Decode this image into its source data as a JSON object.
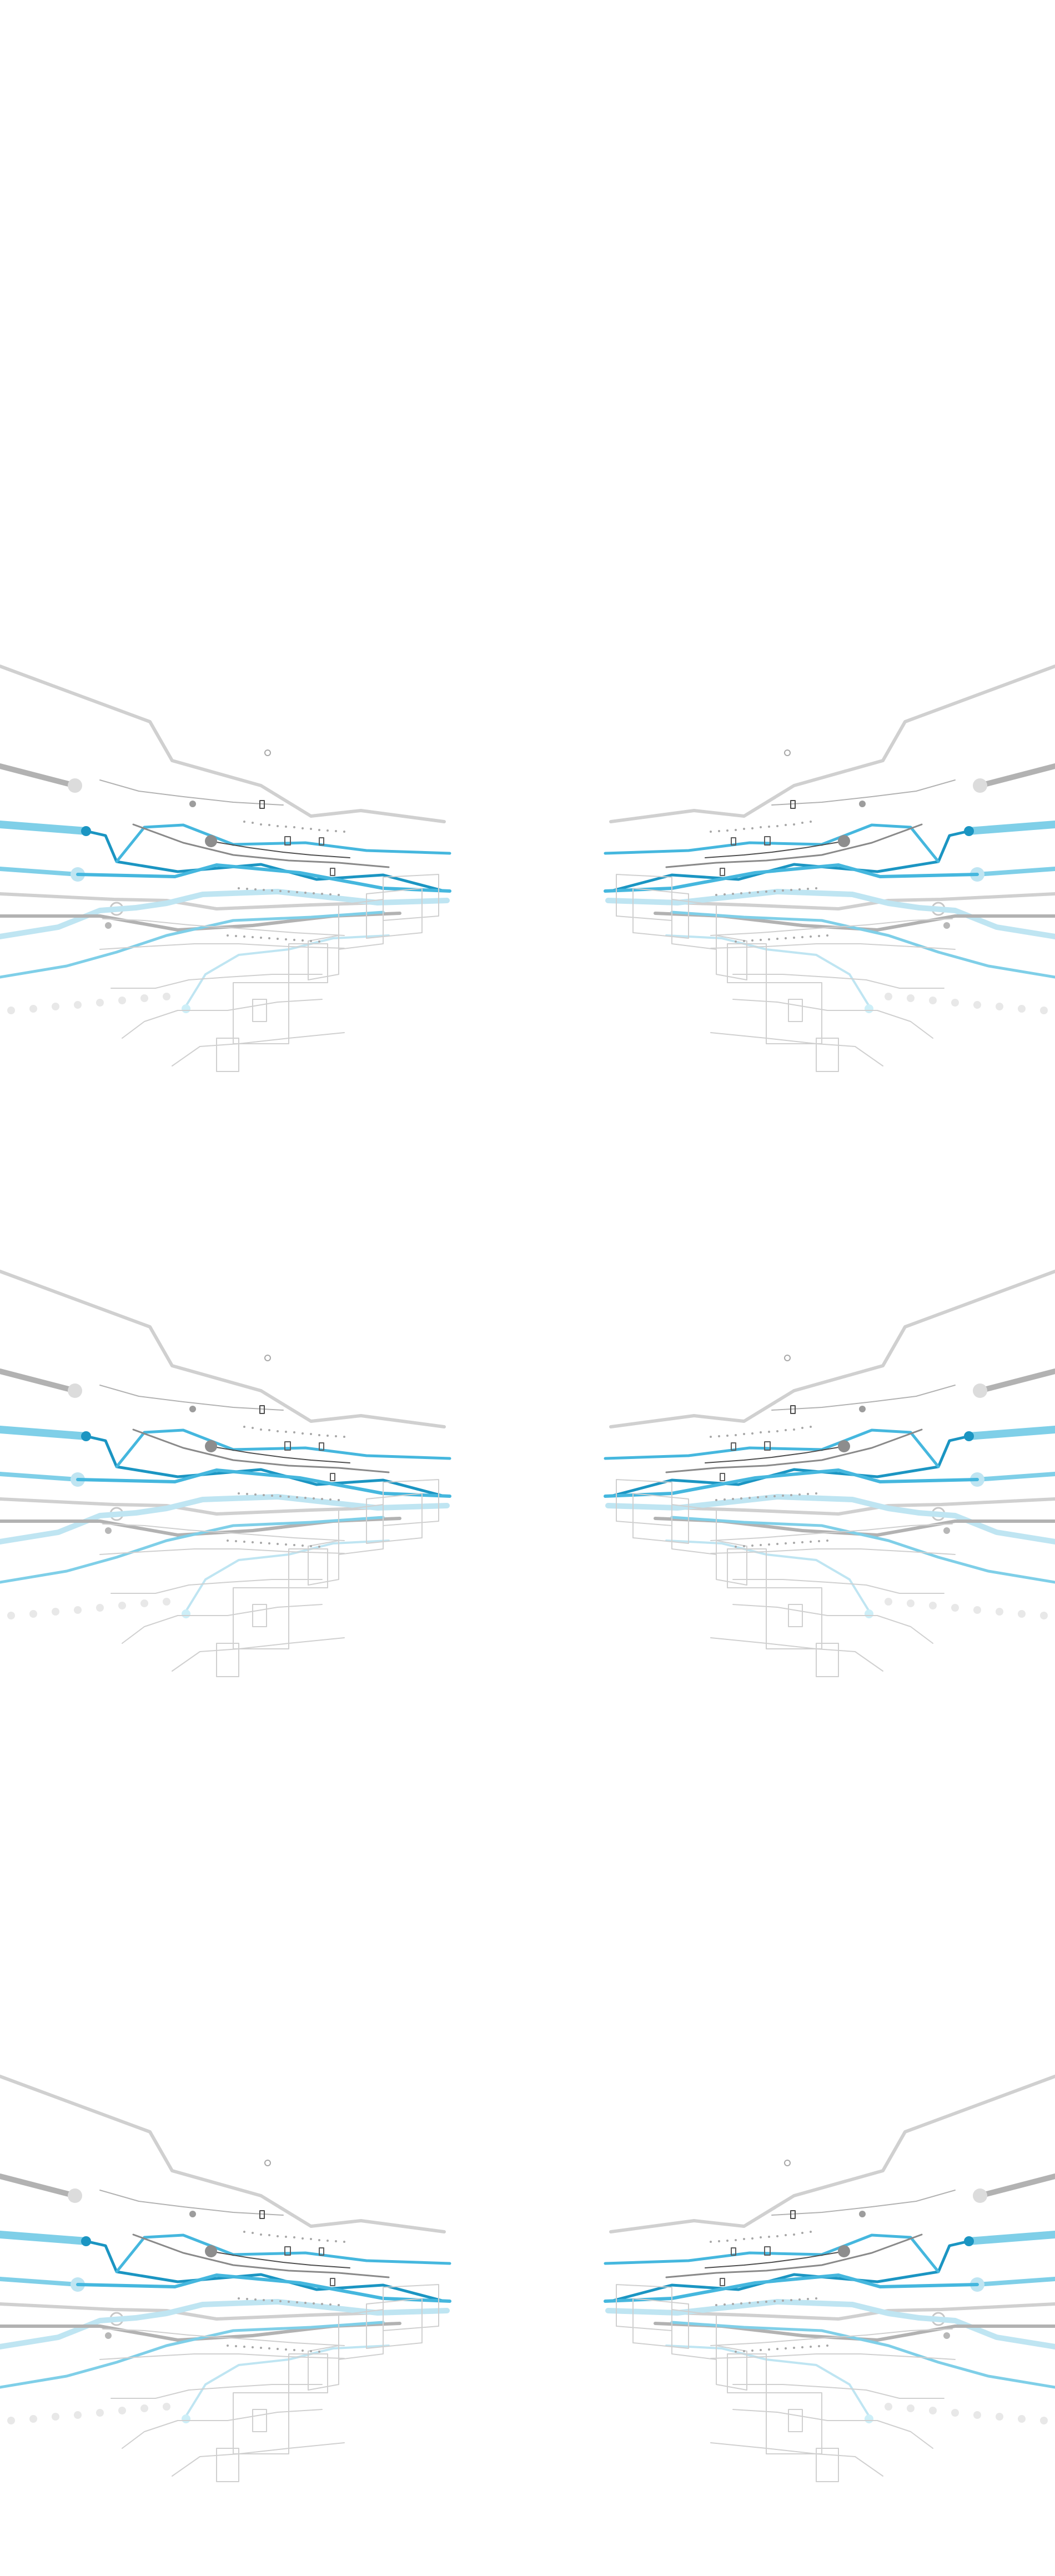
{
  "image": {
    "description_type": "decorative-circuit-art"
  },
  "palette": {
    "background": "#ffffff",
    "gray_light": "#d0d0d0",
    "gray_mid": "#b2b2b2",
    "gray_dark": "#8a8a8a",
    "blue_pale": "#bfe5f2",
    "blue_light": "#7fcfe8",
    "blue_mid": "#45b7de",
    "blue_dark": "#1b95c2",
    "ink": "#4f4f4f"
  },
  "icons": {
    "left_graphic": "circuit-board-icon",
    "right_graphic": "circuit-board-icon"
  }
}
